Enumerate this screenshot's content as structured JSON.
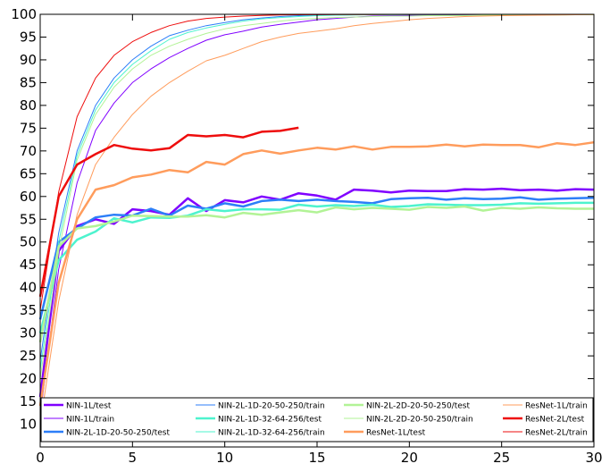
{
  "chart_data": {
    "type": "line",
    "title": "",
    "xlabel": "",
    "ylabel": "",
    "xlim": [
      0,
      30
    ],
    "ylim": [
      5,
      100
    ],
    "xticks": [
      "0",
      "5",
      "10",
      "15",
      "20",
      "25",
      "30"
    ],
    "yticks": [
      "10",
      "15",
      "20",
      "25",
      "30",
      "35",
      "40",
      "45",
      "50",
      "55",
      "60",
      "65",
      "70",
      "75",
      "80",
      "85",
      "90",
      "95",
      "100"
    ],
    "grid": false,
    "legend_position": "bottom",
    "series": [
      {
        "name": "NIN-1L/test",
        "color": "#8000ff",
        "width": 2.5,
        "values": [
          16,
          48,
          53.5,
          55,
          54,
          57.2,
          56.8,
          56,
          59.6,
          56.8,
          59.2,
          58.7,
          60,
          59.3,
          60.7,
          60.2,
          59.3,
          61.5,
          61.3,
          60.9,
          61.3,
          61.2,
          61.2,
          61.6,
          61.5,
          61.7,
          61.4,
          61.5,
          61.3,
          61.6,
          61.5
        ]
      },
      {
        "name": "NIN-1L/train",
        "color": "#8000ff",
        "width": 1,
        "values": [
          12,
          44,
          63,
          74.5,
          80.5,
          85,
          88,
          90.5,
          92.5,
          94.3,
          95.5,
          96.3,
          97.2,
          97.8,
          98.3,
          98.8,
          99.1,
          99.4,
          99.6,
          99.7,
          99.8,
          99.85,
          99.9,
          99.92,
          99.94,
          99.95,
          99.96,
          99.97,
          99.98,
          99.99,
          100
        ]
      },
      {
        "name": "NIN-2L-1D-20-50-250/test",
        "color": "#2c7ef8",
        "width": 2.5,
        "values": [
          33,
          50,
          53,
          55.4,
          56,
          55.8,
          57.3,
          55.8,
          58,
          57.3,
          58.5,
          57.8,
          59,
          59.3,
          59,
          59.3,
          59,
          58.8,
          58.5,
          59.4,
          59.6,
          59.7,
          59.3,
          59.6,
          59.4,
          59.5,
          59.8,
          59.3,
          59.5,
          59.6,
          59.7
        ]
      },
      {
        "name": "NIN-2L-1D-20-50-250/train",
        "color": "#2c7ef8",
        "width": 1,
        "values": [
          24,
          52,
          70,
          80,
          86,
          90,
          93,
          95.3,
          96.5,
          97.5,
          98.2,
          98.8,
          99.2,
          99.5,
          99.7,
          99.8,
          99.85,
          99.9,
          99.92,
          99.94,
          99.95,
          99.96,
          99.97,
          99.98,
          99.98,
          99.99,
          99.99,
          99.99,
          100,
          100,
          100
        ]
      },
      {
        "name": "NIN-2L-1D-32-64-256/test",
        "color": "#4df3ce",
        "width": 2.5,
        "values": [
          30,
          46,
          50.5,
          52.3,
          55.2,
          54.3,
          55.4,
          55.3,
          55.8,
          57.2,
          56.8,
          57.2,
          57.2,
          57.1,
          58.2,
          57.8,
          58.1,
          57.9,
          58.2,
          57.7,
          57.9,
          58.3,
          58.2,
          58.1,
          58.1,
          58.2,
          58.5,
          58.4,
          58.5,
          58.6,
          58.6
        ]
      },
      {
        "name": "NIN-2L-1D-32-64-256/train",
        "color": "#4df3ce",
        "width": 1,
        "values": [
          22,
          50,
          69,
          79,
          85,
          89,
          92,
          94.5,
          96,
          97,
          97.8,
          98.5,
          99,
          99.3,
          99.5,
          99.7,
          99.8,
          99.85,
          99.9,
          99.92,
          99.94,
          99.95,
          99.96,
          99.97,
          99.98,
          99.98,
          99.99,
          99.99,
          100,
          100,
          100
        ]
      },
      {
        "name": "NIN-2L-2D-20-50-250/test",
        "color": "#b2f396",
        "width": 2.5,
        "values": [
          28,
          49,
          53,
          53.5,
          54.5,
          55.8,
          55.7,
          55.6,
          55.6,
          55.9,
          55.4,
          56.4,
          56,
          56.5,
          57,
          56.5,
          57.6,
          57.2,
          57.5,
          57.3,
          57.1,
          57.7,
          57.5,
          57.8,
          56.9,
          57.5,
          57.3,
          57.6,
          57.4,
          57.3,
          57.3
        ]
      },
      {
        "name": "NIN-2L-2D-20-50-250/train",
        "color": "#b2f396",
        "width": 1,
        "values": [
          20,
          48,
          68,
          78,
          84,
          88,
          91,
          93,
          94.5,
          95.8,
          96.8,
          97.5,
          98,
          98.5,
          98.9,
          99.1,
          99.3,
          99.4,
          99.5,
          99.6,
          99.6,
          99.7,
          99.7,
          99.7,
          99.8,
          99.8,
          99.8,
          99.85,
          99.85,
          99.9,
          99.9
        ]
      },
      {
        "name": "ResNet-1L/test",
        "color": "#ff9c5c",
        "width": 2.5,
        "values": [
          14,
          41,
          55,
          61.5,
          62.5,
          64.2,
          64.8,
          65.8,
          65.3,
          67.6,
          67,
          69.3,
          70.1,
          69.4,
          70.1,
          70.7,
          70.3,
          71,
          70.3,
          70.9,
          70.9,
          71,
          71.4,
          71,
          71.4,
          71.3,
          71.3,
          70.8,
          71.7,
          71.3,
          71.9
        ]
      },
      {
        "name": "ResNet-1L/train",
        "color": "#ff9c5c",
        "width": 1,
        "values": [
          10,
          37,
          56,
          67,
          73,
          78,
          82,
          85,
          87.5,
          89.8,
          91,
          92.5,
          94,
          95,
          95.8,
          96.3,
          96.8,
          97.5,
          98,
          98.4,
          98.8,
          99.1,
          99.3,
          99.5,
          99.6,
          99.7,
          99.75,
          99.8,
          99.85,
          99.9,
          99.95
        ]
      },
      {
        "name": "ResNet-2L/test",
        "color": "#ee0d0d",
        "width": 2.5,
        "values": [
          38,
          60,
          67,
          69.3,
          71.3,
          70.5,
          70.1,
          70.6,
          73.5,
          73.2,
          73.5,
          73,
          74.2,
          74.4,
          75.1
        ]
      },
      {
        "name": "ResNet-2L/train",
        "color": "#ee0d0d",
        "width": 1,
        "values": [
          35,
          61,
          77.5,
          86,
          91,
          94,
          96,
          97.5,
          98.5,
          99.1,
          99.4,
          99.6,
          99.75,
          99.85,
          99.9,
          99.93,
          99.95,
          99.96,
          99.97,
          99.98,
          99.98,
          99.99,
          99.99,
          99.99,
          100,
          100,
          100,
          100,
          100,
          100,
          100
        ]
      }
    ]
  }
}
